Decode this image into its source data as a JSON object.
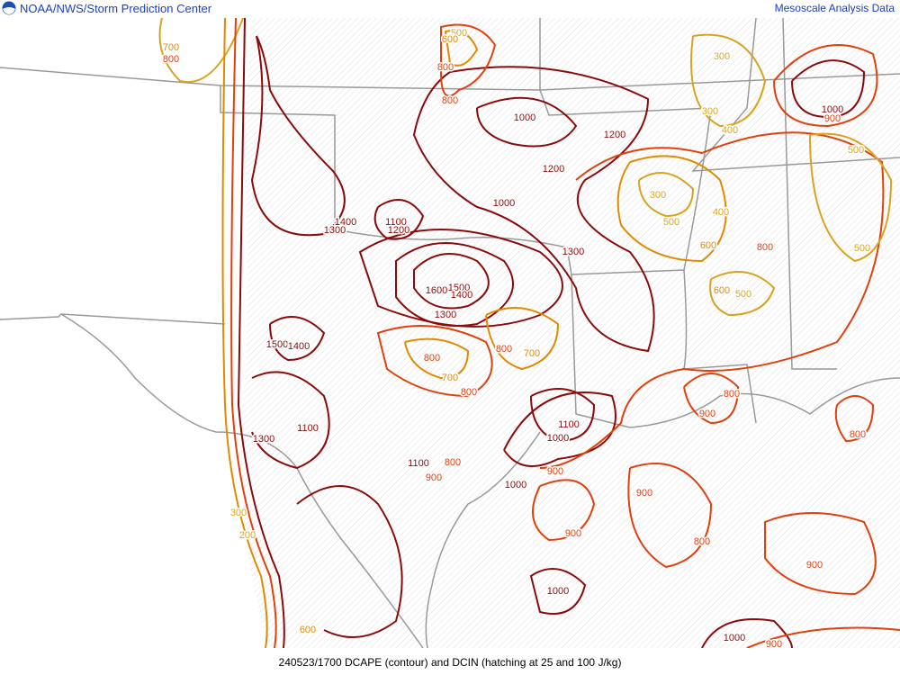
{
  "header": {
    "org": "NOAA/NWS/Storm Prediction Center",
    "product": "Mesoscale Analysis Data",
    "logo_icon": "noaa-logo-icon"
  },
  "caption": "240523/1700 DCAPE (contour) and DCIN (hatching at 25 and 100 J/kg)",
  "colors": {
    "contour_high": "#8b0a0a",
    "contour_mid": "#e0400c",
    "contour_low": "#e08a00",
    "contour_lowest": "#d8a420",
    "borders": "#999999",
    "header_text": "#1a3fc8"
  },
  "contour_labels": [
    "1000",
    "1200",
    "1200",
    "1000",
    "1400",
    "1100",
    "1300",
    "1200",
    "1300",
    "1600",
    "1500",
    "1400",
    "1300",
    "1500",
    "1400",
    "1100",
    "1300",
    "1100",
    "1000",
    "1100",
    "1000",
    "1000",
    "1000",
    "1000",
    "900",
    "800",
    "700",
    "800",
    "800",
    "700",
    "800",
    "900",
    "900",
    "900",
    "900",
    "800",
    "900",
    "900",
    "900",
    "800",
    "800",
    "600",
    "600",
    "500",
    "500",
    "500",
    "400",
    "500",
    "300",
    "300",
    "300",
    "400",
    "800",
    "500",
    "600",
    "800",
    "800",
    "700",
    "800",
    "300",
    "200",
    "600"
  ]
}
